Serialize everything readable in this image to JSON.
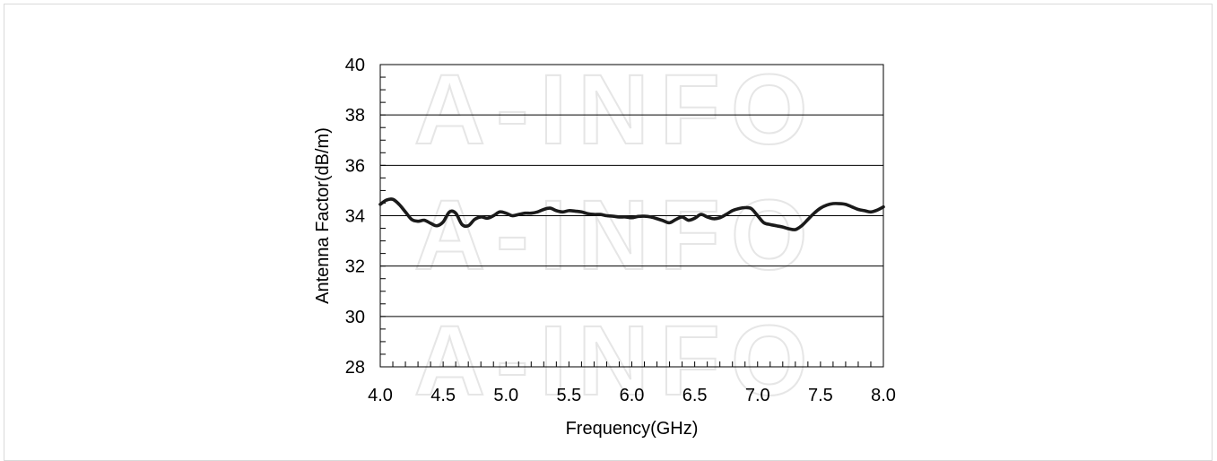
{
  "chart_data": {
    "type": "line",
    "title": "",
    "xlabel": "Frequency(GHz)",
    "ylabel": "Antenna Factor(dB/m)",
    "xlim": [
      4.0,
      8.0
    ],
    "ylim": [
      28,
      40
    ],
    "x_ticks": [
      "4.0",
      "4.5",
      "5.0",
      "5.5",
      "6.0",
      "6.5",
      "7.0",
      "7.5",
      "8.0"
    ],
    "y_ticks": [
      "28",
      "30",
      "32",
      "34",
      "36",
      "38",
      "40"
    ],
    "grid": "horizontal",
    "legend": "none",
    "line_color": "#1a1a1a",
    "watermark": "A-INFO",
    "series": [
      {
        "x": [
          4.0,
          4.05,
          4.1,
          4.15,
          4.2,
          4.25,
          4.3,
          4.35,
          4.4,
          4.45,
          4.5,
          4.55,
          4.6,
          4.65,
          4.7,
          4.75,
          4.8,
          4.85,
          4.9,
          4.95,
          5.0,
          5.05,
          5.1,
          5.15,
          5.2,
          5.25,
          5.3,
          5.35,
          5.4,
          5.45,
          5.5,
          5.55,
          5.6,
          5.65,
          5.7,
          5.75,
          5.8,
          5.85,
          5.9,
          5.95,
          6.0,
          6.05,
          6.1,
          6.15,
          6.2,
          6.25,
          6.3,
          6.35,
          6.4,
          6.45,
          6.5,
          6.55,
          6.6,
          6.65,
          6.7,
          6.75,
          6.8,
          6.85,
          6.9,
          6.95,
          7.0,
          7.05,
          7.1,
          7.15,
          7.2,
          7.25,
          7.3,
          7.35,
          7.4,
          7.45,
          7.5,
          7.55,
          7.6,
          7.65,
          7.7,
          7.75,
          7.8,
          7.85,
          7.9,
          7.95,
          8.0
        ],
        "values": [
          34.45,
          34.62,
          34.65,
          34.45,
          34.15,
          33.85,
          33.78,
          33.82,
          33.7,
          33.6,
          33.75,
          34.15,
          34.1,
          33.65,
          33.6,
          33.85,
          33.95,
          33.9,
          34.0,
          34.15,
          34.1,
          34.0,
          34.05,
          34.1,
          34.1,
          34.15,
          34.25,
          34.3,
          34.2,
          34.15,
          34.2,
          34.18,
          34.15,
          34.08,
          34.05,
          34.05,
          34.0,
          33.98,
          33.95,
          33.95,
          33.92,
          33.97,
          33.98,
          33.95,
          33.88,
          33.8,
          33.72,
          33.85,
          33.95,
          33.82,
          33.9,
          34.05,
          33.95,
          33.88,
          33.92,
          34.05,
          34.2,
          34.28,
          34.32,
          34.28,
          34.0,
          33.72,
          33.65,
          33.6,
          33.55,
          33.48,
          33.45,
          33.6,
          33.85,
          34.1,
          34.3,
          34.42,
          34.48,
          34.48,
          34.45,
          34.35,
          34.25,
          34.2,
          34.15,
          34.22,
          34.35
        ]
      }
    ]
  }
}
